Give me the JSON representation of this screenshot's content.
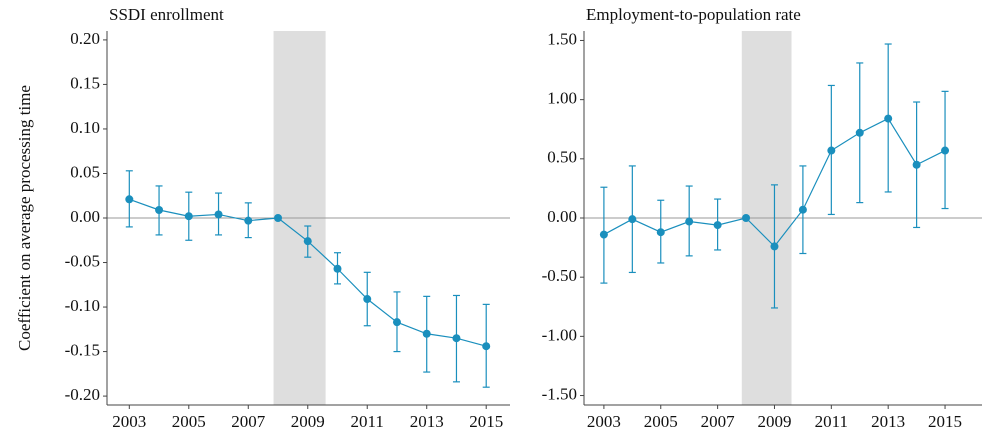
{
  "chart_data": [
    {
      "type": "errorbar",
      "title": "SSDI enrollment",
      "ylabel": "Coefficient on average processing time",
      "color": "#1a8fbd",
      "shade": [
        2007.85,
        2009.6
      ],
      "zero_line": true,
      "x": [
        2003,
        2004,
        2005,
        2006,
        2007,
        2008,
        2009,
        2010,
        2011,
        2012,
        2013,
        2014,
        2015
      ],
      "values": [
        0.021,
        0.009,
        0.002,
        0.004,
        -0.003,
        0,
        -0.026,
        -0.057,
        -0.091,
        -0.117,
        -0.13,
        -0.135,
        -0.144
      ],
      "lower": [
        -0.01,
        -0.019,
        -0.025,
        -0.019,
        -0.022,
        0,
        -0.044,
        -0.074,
        -0.121,
        -0.15,
        -0.173,
        -0.184,
        -0.19
      ],
      "upper": [
        0.053,
        0.036,
        0.029,
        0.028,
        0.017,
        0,
        -0.009,
        -0.039,
        -0.061,
        -0.083,
        -0.088,
        -0.087,
        -0.097
      ],
      "xlim": [
        2002.25,
        2015.8
      ],
      "xticks": [
        2003,
        2005,
        2007,
        2009,
        2011,
        2013,
        2015
      ],
      "ylim": [
        -0.21,
        0.21
      ],
      "yticks": [
        {
          "value": 0.2,
          "label": "0.20"
        },
        {
          "value": 0.15,
          "label": "0.15"
        },
        {
          "value": 0.1,
          "label": "0.10"
        },
        {
          "value": 0.05,
          "label": "0.05"
        },
        {
          "value": 0,
          "label": "0.00"
        },
        {
          "value": -0.05,
          "label": "-0.05"
        },
        {
          "value": -0.1,
          "label": "-0.10"
        },
        {
          "value": -0.15,
          "label": "-0.15"
        },
        {
          "value": -0.2,
          "label": "-0.20"
        }
      ]
    },
    {
      "type": "errorbar",
      "title": "Employment-to-population rate",
      "color": "#1a8fbd",
      "shade": [
        2007.85,
        2009.6
      ],
      "zero_line": true,
      "x": [
        2003,
        2004,
        2005,
        2006,
        2007,
        2008,
        2009,
        2010,
        2011,
        2012,
        2013,
        2014,
        2015
      ],
      "values": [
        -0.14,
        -0.01,
        -0.12,
        -0.03,
        -0.06,
        0,
        -0.24,
        0.07,
        0.57,
        0.72,
        0.84,
        0.45,
        0.57
      ],
      "lower": [
        -0.55,
        -0.46,
        -0.38,
        -0.32,
        -0.27,
        0,
        -0.76,
        -0.3,
        0.03,
        0.13,
        0.22,
        -0.08,
        0.08
      ],
      "upper": [
        0.26,
        0.44,
        0.15,
        0.27,
        0.16,
        0,
        0.28,
        0.44,
        1.12,
        1.31,
        1.47,
        0.98,
        1.07
      ],
      "xlim": [
        2002.3,
        2016.3
      ],
      "xticks": [
        2003,
        2005,
        2007,
        2009,
        2011,
        2013,
        2015
      ],
      "ylim": [
        -1.58,
        1.58
      ],
      "yticks": [
        {
          "value": 1.5,
          "label": "1.50"
        },
        {
          "value": 1,
          "label": "1.00"
        },
        {
          "value": 0.5,
          "label": "0.50"
        },
        {
          "value": 0,
          "label": "0.00"
        },
        {
          "value": -0.5,
          "label": "-0.50"
        },
        {
          "value": -1,
          "label": "-1.00"
        },
        {
          "value": -1.5,
          "label": "-1.50"
        }
      ]
    }
  ]
}
